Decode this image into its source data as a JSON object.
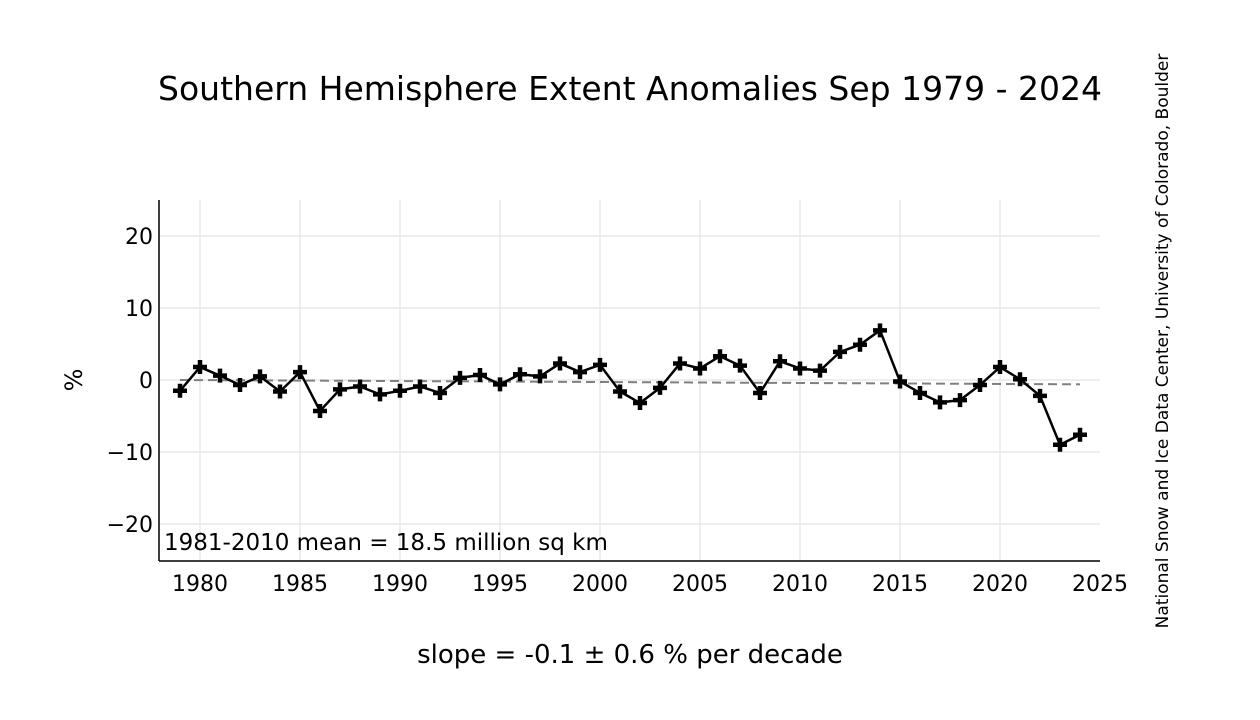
{
  "chart_data": {
    "type": "line",
    "title": "Southern Hemisphere Extent Anomalies Sep 1979 - 2024",
    "xlabel": "slope = -0.1 ± 0.6 % per decade",
    "ylabel": "%",
    "annotation": "1981-2010 mean = 18.5 million sq km",
    "credit": "National Snow and Ice Data Center, University of Colorado, Boulder",
    "xlim": [
      1978,
      2025
    ],
    "ylim": [
      -25,
      25
    ],
    "x_ticks": [
      1980,
      1985,
      1990,
      1995,
      2000,
      2005,
      2010,
      2015,
      2020,
      2025
    ],
    "y_ticks": [
      20,
      10,
      0,
      -10,
      -20
    ],
    "y_tick_labels": [
      "20",
      "10",
      "0",
      "−10",
      "−20"
    ],
    "grid": true,
    "series": [
      {
        "color": "#000000",
        "marker": "plus",
        "x": [
          1979,
          1980,
          1981,
          1982,
          1983,
          1984,
          1985,
          1986,
          1987,
          1988,
          1989,
          1990,
          1991,
          1992,
          1993,
          1994,
          1995,
          1996,
          1997,
          1998,
          1999,
          2000,
          2001,
          2002,
          2003,
          2004,
          2005,
          2006,
          2007,
          2008,
          2009,
          2010,
          2011,
          2012,
          2013,
          2014,
          2015,
          2016,
          2017,
          2018,
          2019,
          2020,
          2021,
          2022,
          2023,
          2024
        ],
        "values": [
          -1.5,
          1.8,
          0.6,
          -0.7,
          0.5,
          -1.6,
          1.1,
          -4.3,
          -1.3,
          -0.9,
          -2.0,
          -1.5,
          -0.9,
          -1.8,
          0.3,
          0.7,
          -0.6,
          0.8,
          0.5,
          2.3,
          1.1,
          2.1,
          -1.6,
          -3.2,
          -1.1,
          2.3,
          1.6,
          3.3,
          2.0,
          -1.8,
          2.6,
          1.6,
          1.3,
          3.9,
          4.9,
          6.9,
          -0.2,
          -1.8,
          -3.1,
          -2.8,
          -0.7,
          1.8,
          0.1,
          -2.2,
          -9.0,
          -7.6
        ]
      }
    ],
    "trend": {
      "color": "#808080",
      "style": "dashed",
      "x": [
        1979,
        2024
      ],
      "values": [
        0.0,
        -0.6
      ]
    }
  }
}
